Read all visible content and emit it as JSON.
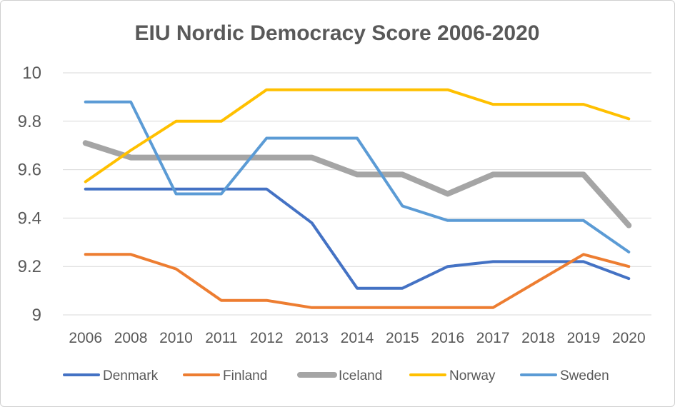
{
  "chart_data": {
    "type": "line",
    "title": "EIU Nordic Democracy Score 2006-2020",
    "xlabel": "",
    "ylabel": "",
    "categories": [
      "2006",
      "2008",
      "2010",
      "2011",
      "2012",
      "2013",
      "2014",
      "2015",
      "2016",
      "2017",
      "2018",
      "2019",
      "2020"
    ],
    "ylim": [
      9,
      10
    ],
    "yticks": [
      "9",
      "9.2",
      "9.4",
      "9.6",
      "9.8",
      "10"
    ],
    "grid": true,
    "legend_position": "bottom",
    "series": [
      {
        "name": "Denmark",
        "color": "#4472c4",
        "width": 4,
        "values": [
          9.52,
          9.52,
          9.52,
          9.52,
          9.52,
          9.38,
          9.11,
          9.11,
          9.2,
          9.22,
          9.22,
          9.22,
          9.15
        ]
      },
      {
        "name": "Finland",
        "color": "#ed7d31",
        "width": 4,
        "values": [
          9.25,
          9.25,
          9.19,
          9.06,
          9.06,
          9.03,
          9.03,
          9.03,
          9.03,
          9.03,
          9.14,
          9.25,
          9.2
        ]
      },
      {
        "name": "Iceland",
        "color": "#a5a5a5",
        "width": 8,
        "values": [
          9.71,
          9.65,
          9.65,
          9.65,
          9.65,
          9.65,
          9.58,
          9.58,
          9.5,
          9.58,
          9.58,
          9.58,
          9.37
        ]
      },
      {
        "name": "Norway",
        "color": "#ffc000",
        "width": 4,
        "values": [
          9.55,
          9.68,
          9.8,
          9.8,
          9.93,
          9.93,
          9.93,
          9.93,
          9.93,
          9.87,
          9.87,
          9.87,
          9.81
        ]
      },
      {
        "name": "Sweden",
        "color": "#5b9bd5",
        "width": 4,
        "values": [
          9.88,
          9.88,
          9.5,
          9.5,
          9.73,
          9.73,
          9.73,
          9.45,
          9.39,
          9.39,
          9.39,
          9.39,
          9.26
        ]
      }
    ]
  }
}
